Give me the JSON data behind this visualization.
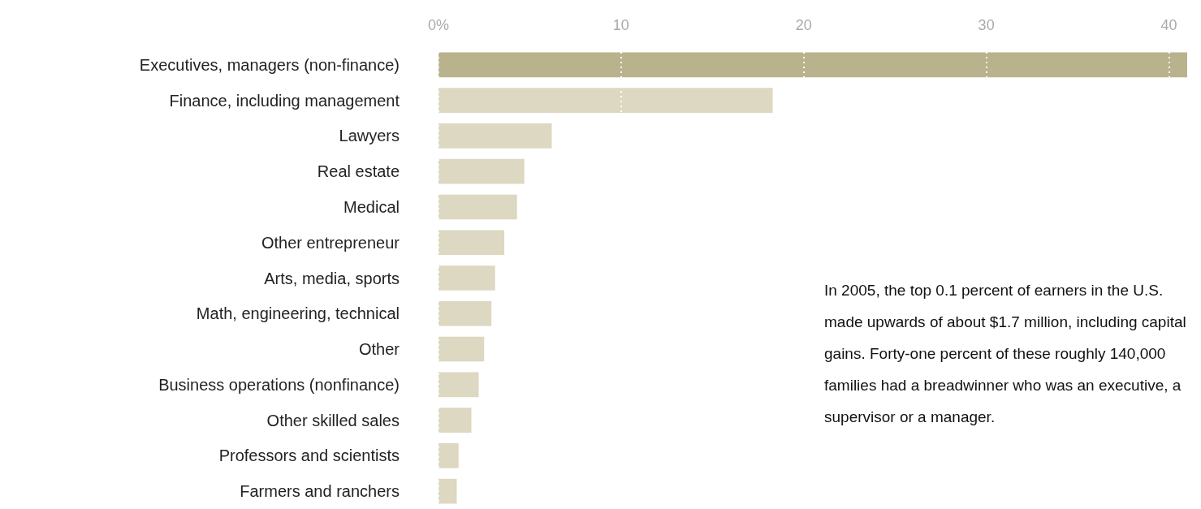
{
  "chart_data": {
    "type": "bar",
    "orientation": "horizontal",
    "categories": [
      "Executives, managers (non-finance)",
      "Finance, including management",
      "Lawyers",
      "Real estate",
      "Medical",
      "Other entrepreneur",
      "Arts, media, sports",
      "Math, engineering, technical",
      "Other",
      "Business operations (nonfinance)",
      "Other skilled sales",
      "Professors and scientists",
      "Farmers and ranchers"
    ],
    "values": [
      41,
      18.3,
      6.2,
      4.7,
      4.3,
      3.6,
      3.1,
      2.9,
      2.5,
      2.2,
      1.8,
      1.1,
      1.0
    ],
    "colors": [
      "#b8b38c",
      "#dcd8c1",
      "#dcd8c1",
      "#dcd8c1",
      "#dcd8c1",
      "#dcd8c1",
      "#dcd8c1",
      "#dcd8c1",
      "#dcd8c1",
      "#dcd8c1",
      "#dcd8c1",
      "#dcd8c1",
      "#dcd8c1"
    ],
    "xlim": [
      0,
      41
    ],
    "xticks": [
      {
        "value": 0,
        "label": "0%"
      },
      10,
      20,
      30,
      40
    ],
    "grid": "x",
    "annotations": [
      "In 2005, the top 0.1 percent of earners in the U.S. made upwards of about $1.7 million, including capital gains. Forty-one percent of these roughly 140,000 families had a breadwinner who was an executive, a supervisor or a manager."
    ]
  }
}
